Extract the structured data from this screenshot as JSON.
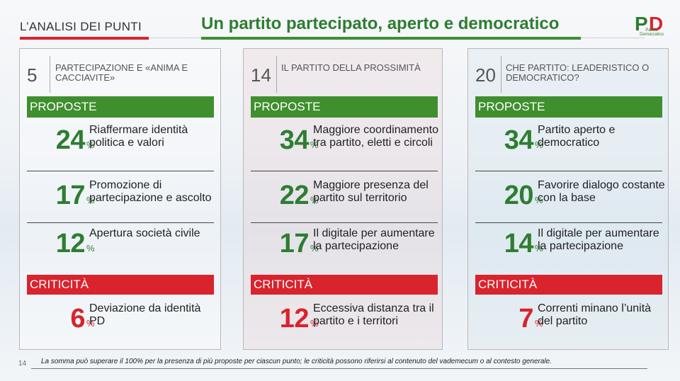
{
  "header": {
    "section": "L’ANALISI DEI PUNTI",
    "title": "Un partito partecipato, aperto e democratico",
    "logo_text": "Partito Democratico",
    "colors": {
      "green": "#3f8f2e",
      "red": "#d9232d"
    }
  },
  "panels": [
    {
      "number": "5",
      "title": "PARTECIPAZIONE E «ANIMA E CACCIAVITE»",
      "proposte_label": "PROPOSTE",
      "proposte": [
        {
          "pct": "24",
          "text": "Riaffermare identità politica e valori"
        },
        {
          "pct": "17",
          "text": "Promozione di partecipazione e ascolto"
        },
        {
          "pct": "12",
          "text": "Apertura società civile"
        }
      ],
      "criticita_label": "CRITICITÀ",
      "criticita": {
        "pct": "6",
        "text": "Deviazione da identità PD"
      }
    },
    {
      "number": "14",
      "title": "IL PARTITO DELLA PROSSIMITÀ",
      "proposte_label": "PROPOSTE",
      "proposte": [
        {
          "pct": "34",
          "text": "Maggiore coordinamento tra partito, eletti e circoli"
        },
        {
          "pct": "22",
          "text": "Maggiore presenza del partito sul territorio"
        },
        {
          "pct": "17",
          "text": "Il digitale per aumentare la partecipazione"
        }
      ],
      "criticita_label": "CRITICITÀ",
      "criticita": {
        "pct": "12",
        "text": "Eccessiva distanza tra il partito e i territori"
      }
    },
    {
      "number": "20",
      "title": "CHE PARTITO: LEADERISTICO O DEMOCRATICO?",
      "proposte_label": "PROPOSTE",
      "proposte": [
        {
          "pct": "34",
          "text": "Partito aperto e democratico"
        },
        {
          "pct": "20",
          "text": "Favorire dialogo costante con la base"
        },
        {
          "pct": "14",
          "text": "Il digitale per aumentare la partecipazione"
        }
      ],
      "criticita_label": "CRITICITÀ",
      "criticita": {
        "pct": "7",
        "text": "Correnti minano l’unità del partito"
      }
    }
  ],
  "percent_sign": "%",
  "footer": {
    "page": "14",
    "note": "La somma può superare il 100% per la presenza di più proposte per ciascun punto; le criticità possono riferirsi al contenuto del vademecum o al contesto generale."
  }
}
